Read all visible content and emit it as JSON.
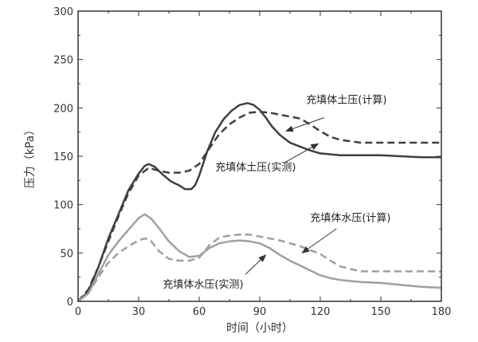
{
  "chart_data": {
    "type": "line",
    "xlabel": "时间（小时）",
    "ylabel": "压力（kPa）",
    "xlim": [
      0,
      180
    ],
    "ylim": [
      0,
      300
    ],
    "xticks": [
      0,
      30,
      60,
      90,
      120,
      150,
      180
    ],
    "yticks": [
      0,
      50,
      100,
      150,
      200,
      250,
      300
    ],
    "grid": false,
    "series": [
      {
        "name": "充填体土压(实测)",
        "style": "solid",
        "color": "#404040",
        "x": [
          0,
          5,
          10,
          15,
          20,
          25,
          30,
          33,
          35,
          38,
          42,
          46,
          50,
          53,
          56,
          58,
          60,
          64,
          68,
          72,
          76,
          80,
          84,
          87,
          90,
          93,
          96,
          100,
          105,
          110,
          115,
          120,
          130,
          140,
          150,
          160,
          170,
          180
        ],
        "y": [
          0,
          10,
          35,
          65,
          90,
          115,
          132,
          140,
          142,
          139,
          131,
          124,
          120,
          116,
          116,
          120,
          130,
          155,
          175,
          188,
          197,
          203,
          205,
          203,
          198,
          190,
          181,
          172,
          164,
          160,
          156,
          153,
          151,
          151,
          151,
          150,
          149,
          149
        ]
      },
      {
        "name": "充填体土压(计算)",
        "style": "dashed",
        "color": "#404040",
        "x": [
          0,
          5,
          10,
          15,
          20,
          25,
          30,
          35,
          40,
          45,
          50,
          55,
          60,
          65,
          70,
          75,
          80,
          85,
          90,
          95,
          100,
          105,
          110,
          115,
          120,
          125,
          130,
          140,
          150,
          160,
          170,
          180
        ],
        "y": [
          0,
          12,
          35,
          62,
          88,
          112,
          130,
          138,
          135,
          133,
          133,
          135,
          142,
          158,
          173,
          183,
          190,
          195,
          196,
          195,
          193,
          191,
          189,
          183,
          176,
          170,
          167,
          164,
          164,
          164,
          164,
          164
        ]
      },
      {
        "name": "充填体水压(实测)",
        "style": "solid",
        "color": "#a0a0a0",
        "x": [
          0,
          5,
          10,
          15,
          20,
          25,
          30,
          33,
          36,
          40,
          45,
          50,
          55,
          60,
          65,
          70,
          75,
          80,
          85,
          90,
          95,
          100,
          105,
          110,
          115,
          120,
          125,
          130,
          140,
          150,
          160,
          170,
          180
        ],
        "y": [
          0,
          8,
          28,
          48,
          62,
          74,
          86,
          90,
          86,
          76,
          62,
          52,
          46,
          47,
          55,
          60,
          62,
          63,
          62,
          60,
          55,
          48,
          42,
          37,
          32,
          27,
          24,
          22,
          20,
          19,
          17,
          15,
          14
        ]
      },
      {
        "name": "充填体水压(计算)",
        "style": "dashed",
        "color": "#a0a0a0",
        "x": [
          0,
          5,
          10,
          15,
          20,
          25,
          30,
          33,
          36,
          40,
          45,
          50,
          55,
          60,
          65,
          70,
          75,
          80,
          85,
          90,
          95,
          100,
          105,
          110,
          115,
          120,
          125,
          130,
          140,
          150,
          160,
          170,
          180
        ],
        "y": [
          0,
          8,
          25,
          40,
          50,
          57,
          63,
          65,
          63,
          52,
          44,
          42,
          42,
          45,
          58,
          66,
          68,
          69,
          69,
          67,
          65,
          63,
          60,
          57,
          53,
          49,
          42,
          36,
          31,
          31,
          31,
          31,
          31
        ]
      }
    ],
    "annotations": [
      {
        "label": "充填体土压(计算)",
        "text_x": 113,
        "text_y": 205,
        "arrow_from": [
          122,
          190
        ],
        "arrow_to": [
          103,
          176
        ]
      },
      {
        "label": "充填体土压(实测)",
        "text_x": 68,
        "text_y": 135,
        "arrow_from": [
          102,
          143
        ],
        "arrow_to": [
          119,
          163
        ]
      },
      {
        "label": "充填体水压(计算)",
        "text_x": 115,
        "text_y": 83,
        "arrow_from": [
          128,
          75
        ],
        "arrow_to": [
          111,
          50
        ]
      },
      {
        "label": "充填体水压(实测)",
        "text_x": 42,
        "text_y": 14,
        "arrow_from": [
          83,
          28
        ],
        "arrow_to": [
          93,
          48
        ]
      }
    ]
  }
}
